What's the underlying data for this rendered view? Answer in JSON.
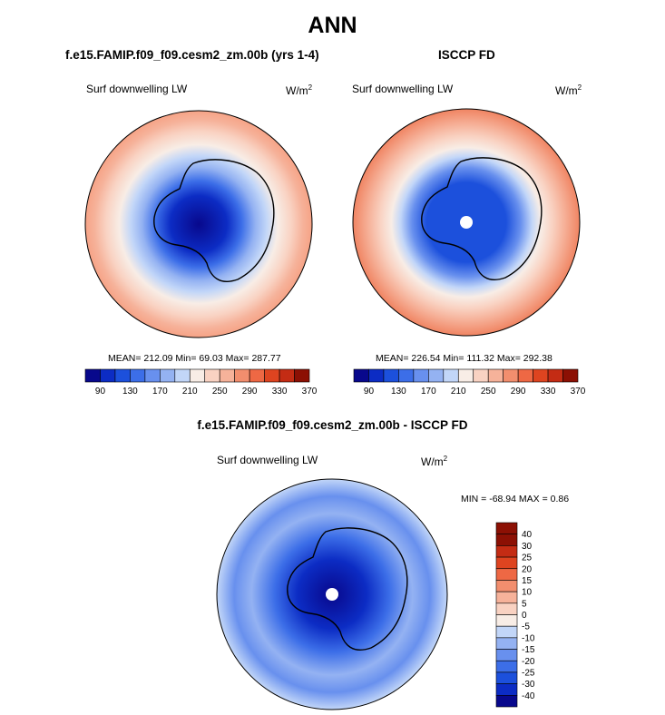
{
  "page_title": "ANN",
  "panels": [
    {
      "title": "f.e15.FAMIP.f09_f09.cesm2_zm.00b (yrs 1-4)",
      "left_label": "Surf downwelling LW",
      "units": "W/m",
      "units_sup": "2",
      "stats_text": "MEAN= 212.09  Min=  69.03  Max= 287.77"
    },
    {
      "title": "ISCCP FD",
      "left_label": "Surf downwelling LW",
      "units": "W/m",
      "units_sup": "2",
      "stats_text": "MEAN= 226.54  Min= 111.32  Max= 292.38"
    },
    {
      "title": "f.e15.FAMIP.f09_f09.cesm2_zm.00b - ISCCP FD",
      "left_label": "Surf downwelling LW",
      "units": "W/m",
      "units_sup": "2",
      "stats_text": "MIN = -68.94 MAX =   0.86"
    }
  ],
  "chart_data": [
    {
      "type": "heatmap",
      "projection": "south polar stereographic",
      "title": "f.e15.FAMIP.f09_f09.cesm2_zm.00b (yrs 1-4)",
      "variable": "Surf downwelling LW",
      "units": "W/m2",
      "stats": {
        "mean": 212.09,
        "min": 69.03,
        "max": 287.77
      },
      "colorbar_levels": [
        90,
        110,
        130,
        150,
        170,
        190,
        210,
        230,
        250,
        270,
        290,
        310,
        330,
        350,
        370
      ],
      "colorbar_ticks": [
        "90",
        "130",
        "170",
        "210",
        "250",
        "290",
        "330",
        "370"
      ],
      "colorbar_orientation": "horizontal"
    },
    {
      "type": "heatmap",
      "projection": "south polar stereographic",
      "title": "ISCCP FD",
      "variable": "Surf downwelling LW",
      "units": "W/m2",
      "stats": {
        "mean": 226.54,
        "min": 111.32,
        "max": 292.38
      },
      "colorbar_levels": [
        90,
        110,
        130,
        150,
        170,
        190,
        210,
        230,
        250,
        270,
        290,
        310,
        330,
        350,
        370
      ],
      "colorbar_ticks": [
        "90",
        "130",
        "170",
        "210",
        "250",
        "290",
        "330",
        "370"
      ],
      "colorbar_orientation": "horizontal"
    },
    {
      "type": "heatmap",
      "projection": "south polar stereographic",
      "title": "f.e15.FAMIP.f09_f09.cesm2_zm.00b - ISCCP FD",
      "variable": "Surf downwelling LW",
      "units": "W/m2",
      "stats": {
        "min": -68.94,
        "max": 0.86
      },
      "colorbar_levels": [
        -40,
        -30,
        -25,
        -20,
        -15,
        -10,
        -5,
        0,
        5,
        10,
        15,
        20,
        25,
        30,
        40
      ],
      "colorbar_ticks": [
        "40",
        "30",
        "25",
        "20",
        "15",
        "10",
        "5",
        "0",
        "-5",
        "-10",
        "-15",
        "-20",
        "-25",
        "-30",
        "-40"
      ],
      "colorbar_orientation": "vertical"
    }
  ],
  "colors": {
    "scale": [
      "#08088c",
      "#0c2cc4",
      "#1c50dc",
      "#3c6ee8",
      "#6890ee",
      "#94b2f2",
      "#c2d6f8",
      "#f8ede6",
      "#f9d2c2",
      "#f6b29a",
      "#f28e6e",
      "#ee6844",
      "#de4420",
      "#c42c14",
      "#8c1004"
    ],
    "land": "#000000",
    "pole_hole": "#ffffff"
  }
}
